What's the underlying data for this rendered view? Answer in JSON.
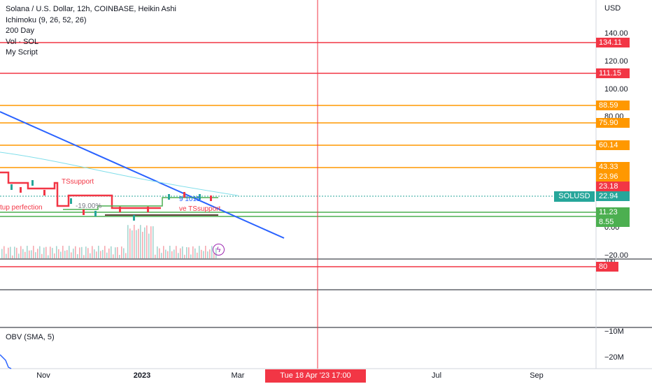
{
  "legend": {
    "symbol": "Solana / U.S. Dollar, 12h, COINBASE, Heikin Ashi",
    "indicators": [
      "Ichimoku (9, 26, 52, 26)",
      "200 Day",
      "Vol · SOL",
      "My Script"
    ]
  },
  "price_axis": {
    "currency": "USD",
    "ticks": [
      "140.00",
      "120.00",
      "100.00",
      "80.00",
      "0.00"
    ],
    "vol_ticks": [
      "−20.00",
      "100"
    ]
  },
  "horizontal_levels": [
    {
      "label": "134.11",
      "color": "#f23645"
    },
    {
      "label": "111.15",
      "color": "#f23645"
    },
    {
      "label": "88.59",
      "color": "#ff9800"
    },
    {
      "label": "75.90",
      "color": "#ff9800"
    },
    {
      "label": "60.14",
      "color": "#ff9800"
    },
    {
      "label": "43.33",
      "color": "#ff9800"
    },
    {
      "label": "23.96",
      "color": "#ff9800"
    },
    {
      "label": "23.18",
      "color": "#f23645"
    },
    {
      "label": "22.94",
      "color": "#26a69a"
    },
    {
      "label": "11.23",
      "color": "#4caf50"
    },
    {
      "label": "8.55",
      "color": "#4caf50"
    },
    {
      "label": "80",
      "color": "#f23645"
    }
  ],
  "ticker_badge": "SOLUSD",
  "overlay_texts": [
    "TSsupport",
    "tup perfection",
    "-19.00%",
    "ve TSsupport",
    "9 1015"
  ],
  "obv": {
    "label": "OBV (SMA, 5)",
    "ticks": [
      "−10M",
      "−20M"
    ]
  },
  "time_axis": {
    "labels": [
      "Nov",
      "2023",
      "Mar",
      "Jul",
      "Sep"
    ],
    "crosshair": "Tue 18 Apr '23   17:00"
  },
  "colors": {
    "red": "#f23645",
    "orange": "#ff9800",
    "green": "#4caf50",
    "teal": "#26a69a",
    "blue": "#2962ff",
    "purple": "#9c27b0"
  },
  "icons": {
    "lightning": "lightning-bolt-icon"
  }
}
